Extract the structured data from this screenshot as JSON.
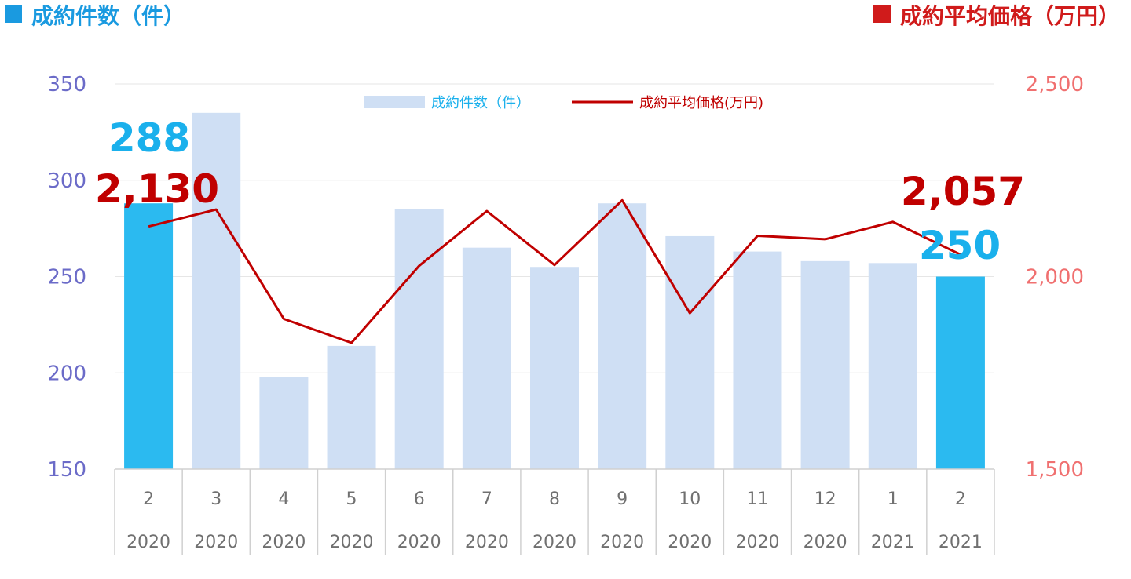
{
  "header": {
    "left_title": "成約件数（件）",
    "right_title": "成約平均価格（万円）"
  },
  "legend": {
    "bar_label": "成約件数（件）",
    "line_label": "成約平均価格(万円)"
  },
  "colors": {
    "bar": "#cfdff4",
    "bar_highlight": "#2bbaf0",
    "line": "#c00000",
    "left_axis": "#6b6bc8",
    "right_axis": "#f07070",
    "left_header": "#1a9ae0",
    "right_header": "#d01b1b",
    "callout_bar": "#1ab0ec",
    "callout_line": "#c00000"
  },
  "callouts": {
    "first_count": "288",
    "first_price": "2,130",
    "last_price": "2,057",
    "last_count": "250"
  },
  "chart_data": {
    "type": "bar",
    "categories": [
      "2",
      "3",
      "4",
      "5",
      "6",
      "7",
      "8",
      "9",
      "10",
      "11",
      "12",
      "1",
      "2"
    ],
    "years": [
      "2020",
      "2020",
      "2020",
      "2020",
      "2020",
      "2020",
      "2020",
      "2020",
      "2020",
      "2020",
      "2020",
      "2021",
      "2021"
    ],
    "series": [
      {
        "name": "成約件数（件）",
        "type": "bar",
        "axis": "left",
        "values": [
          288,
          335,
          198,
          214,
          285,
          265,
          255,
          288,
          271,
          263,
          258,
          257,
          250
        ],
        "highlight": [
          0,
          12
        ]
      },
      {
        "name": "成約平均価格(万円)",
        "type": "line",
        "axis": "right",
        "values": [
          2130,
          2174,
          1890,
          1828,
          2028,
          2170,
          2030,
          2198,
          1905,
          2106,
          2097,
          2142,
          2057
        ]
      }
    ],
    "left_axis": {
      "min": 150,
      "max": 350,
      "ticks": [
        "150",
        "200",
        "250",
        "300",
        "350"
      ]
    },
    "right_axis": {
      "min": 1500,
      "max": 2500,
      "ticks": [
        "1,500",
        "2,000",
        "2,500"
      ]
    },
    "grid": true,
    "legend_position": "top-center"
  }
}
